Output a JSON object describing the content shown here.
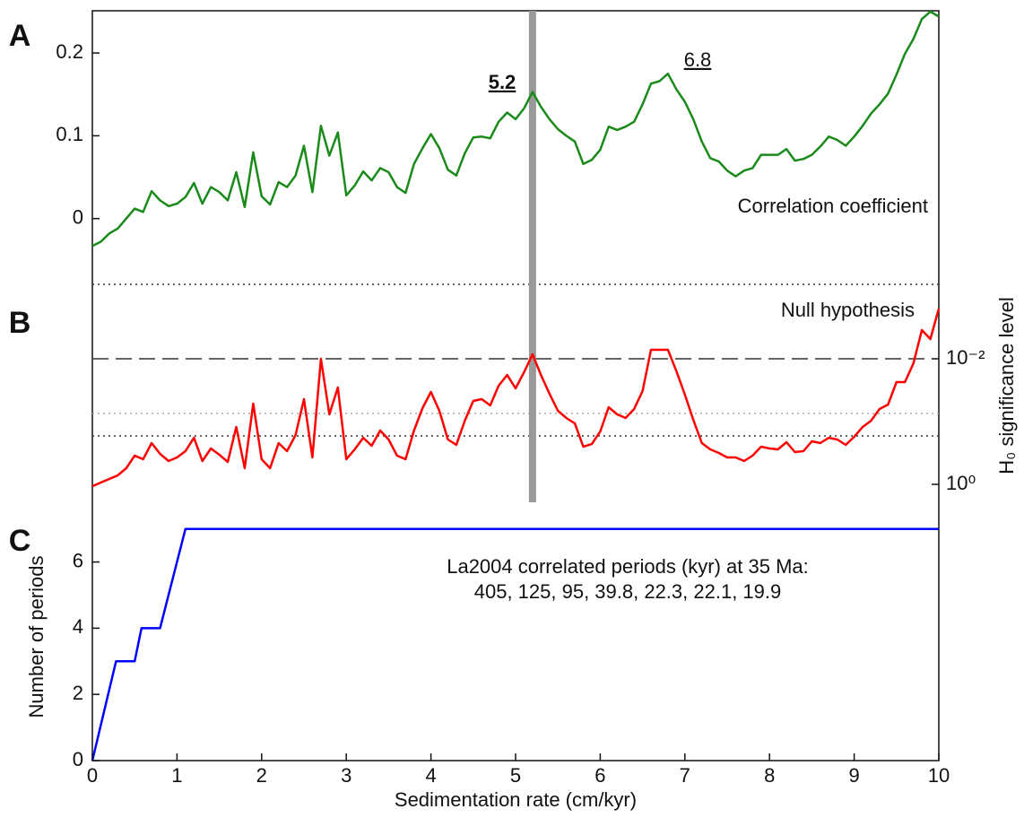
{
  "chart_data": [
    {
      "type": "line",
      "panel_label": "A",
      "color": "#1a8a1a",
      "x": [
        0,
        0.1,
        0.2,
        0.3,
        0.4,
        0.5,
        0.6,
        0.7,
        0.8,
        0.9,
        1,
        1.1,
        1.2,
        1.3,
        1.4,
        1.5,
        1.6,
        1.7,
        1.8,
        1.9,
        2,
        2.1,
        2.2,
        2.3,
        2.4,
        2.5,
        2.6,
        2.7,
        2.8,
        2.9,
        3,
        3.1,
        3.2,
        3.3,
        3.4,
        3.5,
        3.6,
        3.7,
        3.8,
        3.9,
        4,
        4.1,
        4.2,
        4.3,
        4.4,
        4.5,
        4.6,
        4.7,
        4.8,
        4.9,
        5,
        5.1,
        5.2,
        5.3,
        5.4,
        5.5,
        5.6,
        5.7,
        5.8,
        5.9,
        6,
        6.1,
        6.2,
        6.3,
        6.4,
        6.5,
        6.6,
        6.7,
        6.8,
        6.9,
        7,
        7.1,
        7.2,
        7.3,
        7.4,
        7.5,
        7.6,
        7.7,
        7.8,
        7.9,
        8,
        8.1,
        8.2,
        8.3,
        8.4,
        8.5,
        8.6,
        8.7,
        8.8,
        8.9,
        9,
        9.1,
        9.2,
        9.3,
        9.4,
        9.5,
        9.6,
        9.7,
        9.8,
        9.9,
        10
      ],
      "values": [
        -0.033,
        -0.028,
        -0.018,
        -0.012,
        0,
        0.012,
        0.008,
        0.033,
        0.022,
        0.015,
        0.018,
        0.026,
        0.043,
        0.018,
        0.038,
        0.032,
        0.022,
        0.056,
        0.014,
        0.08,
        0.027,
        0.017,
        0.044,
        0.038,
        0.052,
        0.088,
        0.032,
        0.112,
        0.076,
        0.104,
        0.028,
        0.04,
        0.057,
        0.046,
        0.061,
        0.056,
        0.038,
        0.031,
        0.066,
        0.085,
        0.102,
        0.085,
        0.059,
        0.052,
        0.079,
        0.098,
        0.099,
        0.097,
        0.117,
        0.128,
        0.12,
        0.133,
        0.153,
        0.135,
        0.12,
        0.108,
        0.1,
        0.093,
        0.066,
        0.071,
        0.083,
        0.111,
        0.107,
        0.111,
        0.117,
        0.138,
        0.163,
        0.166,
        0.175,
        0.156,
        0.141,
        0.12,
        0.093,
        0.073,
        0.069,
        0.058,
        0.051,
        0.058,
        0.061,
        0.077,
        0.077,
        0.077,
        0.084,
        0.07,
        0.072,
        0.077,
        0.087,
        0.099,
        0.095,
        0.088,
        0.099,
        0.112,
        0.127,
        0.138,
        0.151,
        0.174,
        0.199,
        0.217,
        0.241,
        0.25,
        0.244
      ],
      "ylim": [
        -0.048,
        0.251
      ],
      "yticks": [
        0,
        0.1,
        0.2
      ],
      "yaxis_side": "left",
      "vline": {
        "value": 5.2,
        "color": "#999999"
      },
      "annotations": [
        {
          "text": "5.2",
          "bold": true
        },
        {
          "text": "6.8",
          "bold": false
        },
        {
          "text": "Correlation coefficient",
          "bold": false
        }
      ]
    },
    {
      "type": "line",
      "panel_label": "B",
      "color": "#ff0000",
      "log": true,
      "x": [
        0,
        0.1,
        0.2,
        0.3,
        0.4,
        0.5,
        0.6,
        0.7,
        0.8,
        0.9,
        1,
        1.1,
        1.2,
        1.3,
        1.4,
        1.5,
        1.6,
        1.7,
        1.8,
        1.9,
        2,
        2.1,
        2.2,
        2.3,
        2.4,
        2.5,
        2.6,
        2.7,
        2.8,
        2.9,
        3,
        3.1,
        3.2,
        3.3,
        3.4,
        3.5,
        3.6,
        3.7,
        3.8,
        3.9,
        4,
        4.1,
        4.2,
        4.3,
        4.4,
        4.5,
        4.6,
        4.7,
        4.8,
        4.9,
        5,
        5.1,
        5.2,
        5.3,
        5.4,
        5.5,
        5.6,
        5.7,
        5.8,
        5.9,
        6,
        6.1,
        6.2,
        6.3,
        6.4,
        6.5,
        6.6,
        6.7,
        6.8,
        6.9,
        7,
        7.1,
        7.2,
        7.3,
        7.4,
        7.5,
        7.6,
        7.7,
        7.8,
        7.9,
        8,
        8.1,
        8.2,
        8.3,
        8.4,
        8.5,
        8.6,
        8.7,
        8.8,
        8.9,
        9,
        9.1,
        9.2,
        9.3,
        9.4,
        9.5,
        9.6,
        9.7,
        9.8,
        9.9,
        10
      ],
      "values": [
        1.07,
        0.936,
        0.821,
        0.72,
        0.553,
        0.349,
        0.398,
        0.22,
        0.327,
        0.425,
        0.373,
        0.296,
        0.181,
        0.425,
        0.268,
        0.338,
        0.439,
        0.122,
        0.553,
        0.0518,
        0.398,
        0.553,
        0.22,
        0.296,
        0.164,
        0.0439,
        0.373,
        0.01,
        0.0769,
        0.0286,
        0.398,
        0.277,
        0.181,
        0.243,
        0.139,
        0.193,
        0.349,
        0.398,
        0.139,
        0.0611,
        0.0338,
        0.0674,
        0.193,
        0.235,
        0.0968,
        0.0469,
        0.0439,
        0.0553,
        0.0268,
        0.0181,
        0.0296,
        0.0164,
        0.00848,
        0.0181,
        0.0361,
        0.0674,
        0.0877,
        0.107,
        0.251,
        0.228,
        0.144,
        0.0591,
        0.0769,
        0.0877,
        0.0631,
        0.0327,
        0.0072,
        0.0072,
        0.0072,
        0.0158,
        0.0373,
        0.0936,
        0.22,
        0.277,
        0.316,
        0.373,
        0.373,
        0.425,
        0.349,
        0.251,
        0.268,
        0.277,
        0.213,
        0.306,
        0.296,
        0.206,
        0.22,
        0.181,
        0.193,
        0.235,
        0.175,
        0.122,
        0.0968,
        0.0631,
        0.0535,
        0.0235,
        0.0235,
        0.0118,
        0.00349,
        0.00485,
        0.00158
      ],
      "ylim": [
        1.93,
        0.000268
      ],
      "yaxis_side": "right",
      "yticks": [
        {
          "value": 1,
          "label": "10⁰"
        },
        {
          "value": 0.01,
          "label": "10⁻²"
        }
      ],
      "ylabel": "H₀ significance level",
      "hlines": [
        {
          "value": 0.000652,
          "style": "dotted",
          "color": "#333333"
        },
        {
          "value": 0.01,
          "style": "dashed",
          "color": "#333333"
        },
        {
          "value": 0.0744,
          "style": "dotted",
          "color": "#aaaaaa"
        },
        {
          "value": 0.169,
          "style": "dotted",
          "color": "#333333"
        }
      ],
      "annotations": [
        {
          "text": "Null hypothesis",
          "bold": false
        }
      ]
    },
    {
      "type": "line",
      "panel_label": "C",
      "color": "#0000ff",
      "x": [
        0,
        0.28,
        0.5,
        0.58,
        0.8,
        1.1,
        10
      ],
      "values": [
        0,
        3,
        3,
        4,
        4,
        7,
        7
      ],
      "xlim": [
        0,
        10
      ],
      "xticks": [
        0,
        1,
        2,
        3,
        4,
        5,
        6,
        7,
        8,
        9,
        10
      ],
      "xlabel": "Sedimentation rate (cm/kyr)",
      "ylim": [
        0,
        7.75
      ],
      "yticks": [
        0,
        2,
        4,
        6
      ],
      "yaxis_side": "left",
      "ylabel": "Number of periods",
      "annotations": [
        {
          "text": "La2004 correlated periods (kyr) at 35 Ma:",
          "bold": false
        },
        {
          "text": "405, 125, 95, 39.8, 22.3, 22.1, 19.9",
          "bold": false
        }
      ]
    }
  ]
}
